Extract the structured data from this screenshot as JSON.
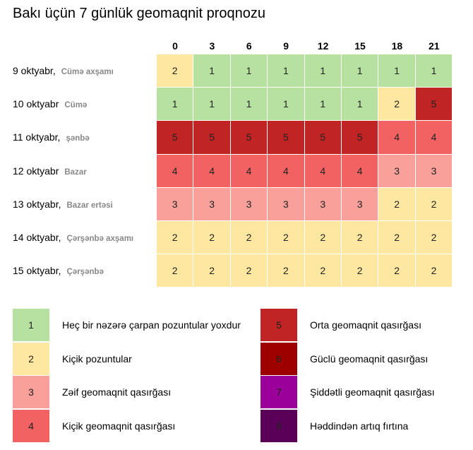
{
  "title": "Bakı üçün 7 günlük geomaqnit proqnozu",
  "chart_data": {
    "type": "heatmap",
    "title": "Bakı üçün 7 günlük geomaqnit proqnozu",
    "columns": [
      "0",
      "3",
      "6",
      "9",
      "12",
      "15",
      "18",
      "21"
    ],
    "rows": [
      {
        "date": "9 oktyabr,",
        "day": "Cümə axşamı",
        "values": [
          2,
          1,
          1,
          1,
          1,
          1,
          1,
          1
        ]
      },
      {
        "date": "10 oktyabr",
        "day": "Cümə",
        "values": [
          1,
          1,
          1,
          1,
          1,
          1,
          2,
          5
        ]
      },
      {
        "date": "11 oktyabr,",
        "day": "şənbə",
        "values": [
          5,
          5,
          5,
          5,
          5,
          5,
          4,
          4
        ]
      },
      {
        "date": "12 oktyabr",
        "day": "Bazar",
        "values": [
          4,
          4,
          4,
          4,
          4,
          4,
          3,
          3
        ]
      },
      {
        "date": "13 oktyabr,",
        "day": "Bazar ertəsi",
        "values": [
          3,
          3,
          3,
          3,
          3,
          3,
          2,
          2
        ]
      },
      {
        "date": "14 oktyabr,",
        "day": "Çərşənbə axşamı",
        "values": [
          2,
          2,
          2,
          2,
          2,
          2,
          2,
          2
        ]
      },
      {
        "date": "15 oktyabr,",
        "day": "Çərşənbə",
        "values": [
          2,
          2,
          2,
          2,
          2,
          2,
          2,
          2
        ]
      }
    ],
    "colors": {
      "1": "#b7e1a1",
      "2": "#fee7a1",
      "3": "#f9a09b",
      "4": "#f26262",
      "5": "#c02424",
      "6": "#9e0000",
      "7": "#9b009b",
      "8": "#5b0058"
    },
    "legend": [
      {
        "level": "1",
        "label": "Heç bir nəzərə çarpan pozuntular yoxdur"
      },
      {
        "level": "2",
        "label": "Kiçik pozuntular"
      },
      {
        "level": "3",
        "label": "Zəif geomaqnit qasırğası"
      },
      {
        "level": "4",
        "label": "Kiçik geomaqnit qasırğası"
      },
      {
        "level": "5",
        "label": "Orta geomaqnit qasırğası"
      },
      {
        "level": "6",
        "label": "Güclü geomaqnit qasırğası"
      },
      {
        "level": "7",
        "label": "Şiddətli geomaqnit qasırğası"
      },
      {
        "level": "8",
        "label": "Həddindən artıq fırtına"
      }
    ]
  }
}
